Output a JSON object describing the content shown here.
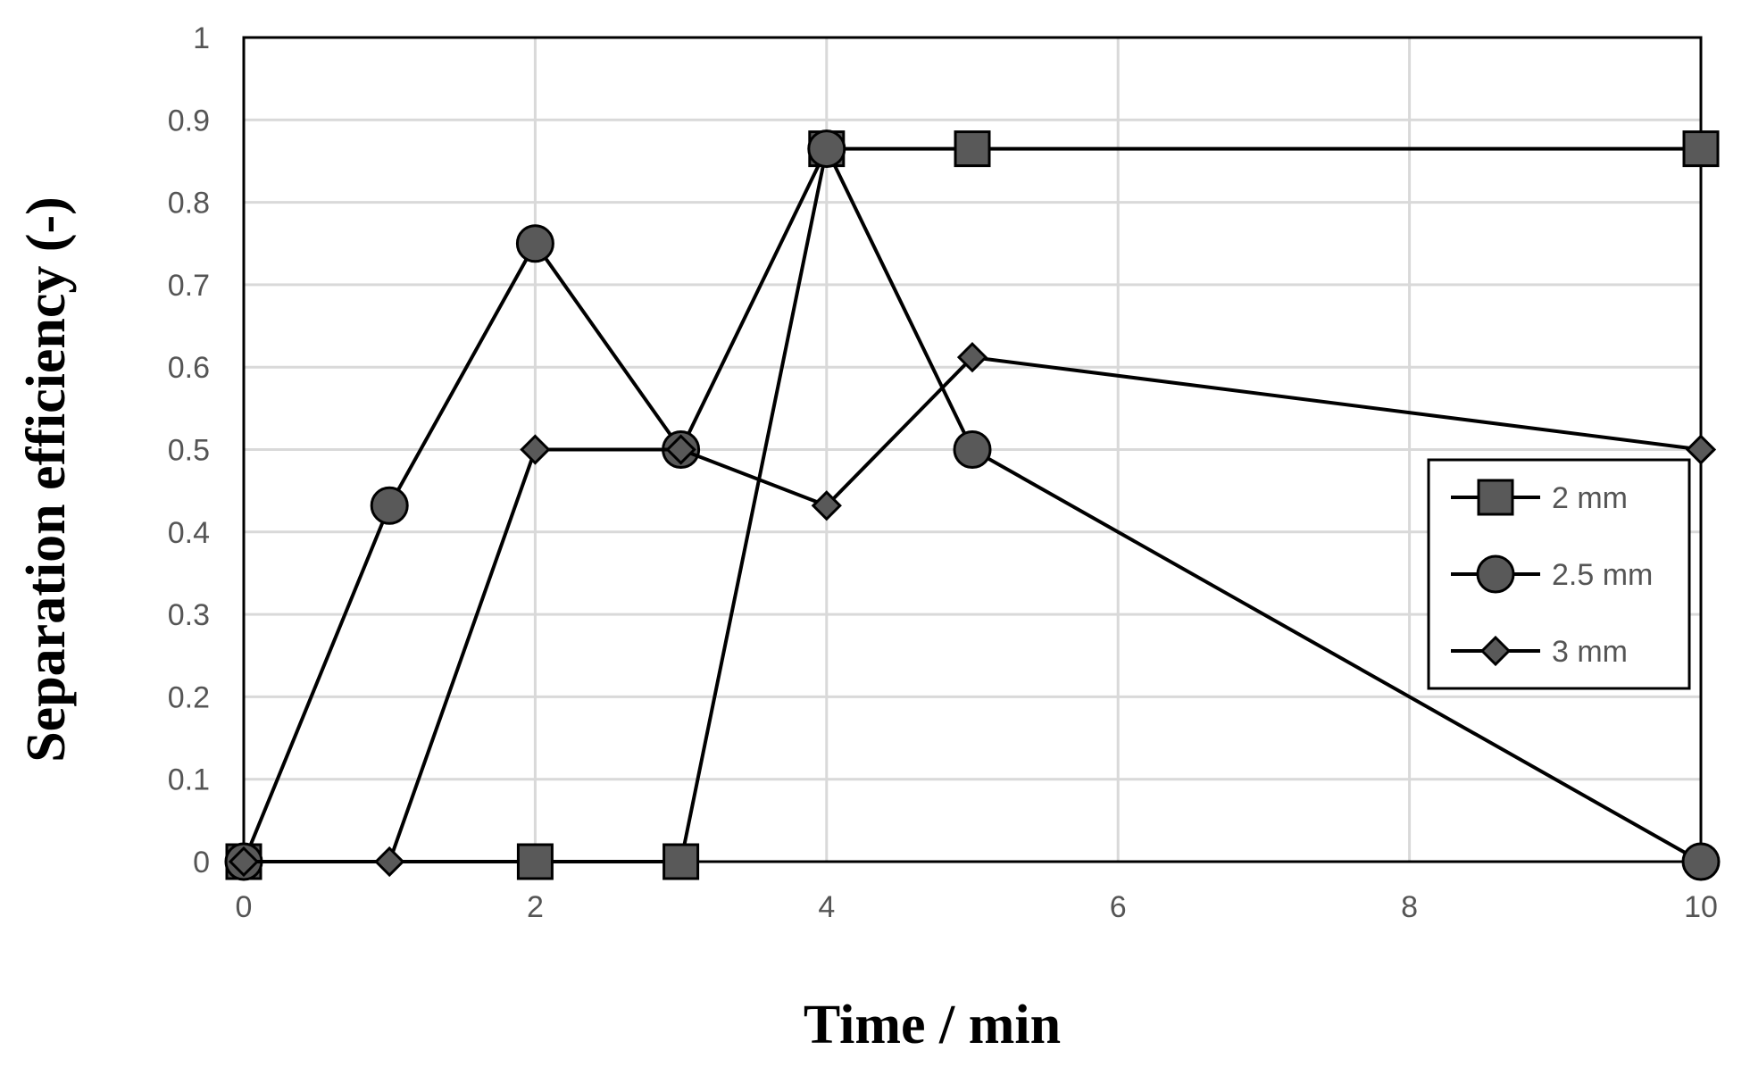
{
  "chart_data": {
    "type": "line",
    "title": "",
    "xlabel": "Time / min",
    "ylabel": "Separation efficiency (-)",
    "x_tick_labels": [
      "0",
      "2",
      "4",
      "6",
      "8",
      "10"
    ],
    "y_tick_labels": [
      "0",
      "0.1",
      "0.2",
      "0.3",
      "0.4",
      "0.5",
      "0.6",
      "0.7",
      "0.8",
      "0.9",
      "1"
    ],
    "xlim": [
      0,
      10
    ],
    "ylim": [
      0,
      1
    ],
    "grid": true,
    "legend_position": "right",
    "series": [
      {
        "name": "2 mm",
        "marker": "square",
        "points": [
          [
            0,
            0
          ],
          [
            2,
            0
          ],
          [
            3,
            0
          ],
          [
            4,
            0.865
          ],
          [
            5,
            0.865
          ],
          [
            10,
            0.865
          ]
        ]
      },
      {
        "name": "2.5 mm",
        "marker": "circle",
        "points": [
          [
            0,
            0
          ],
          [
            1,
            0.432
          ],
          [
            2,
            0.75
          ],
          [
            3,
            0.5
          ],
          [
            4,
            0.865
          ],
          [
            5,
            0.5
          ],
          [
            10,
            0
          ]
        ]
      },
      {
        "name": "3 mm",
        "marker": "diamond",
        "points": [
          [
            0,
            0
          ],
          [
            1,
            0
          ],
          [
            2,
            0.5
          ],
          [
            3,
            0.5
          ],
          [
            4,
            0.432
          ],
          [
            5,
            0.612
          ],
          [
            10,
            0.5
          ]
        ]
      }
    ]
  }
}
